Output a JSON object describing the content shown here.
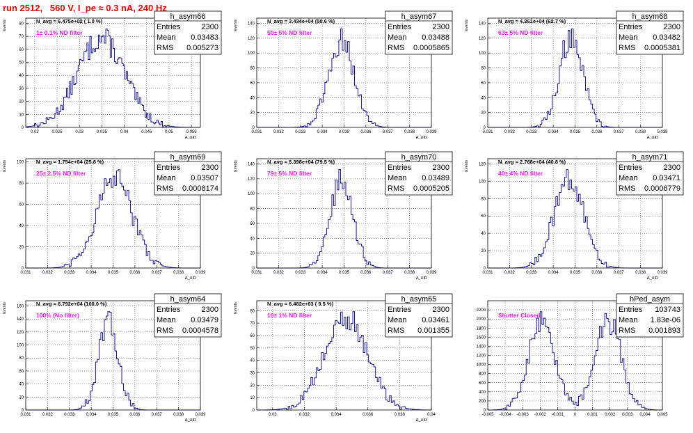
{
  "run_title": "run 2512,   560 V, I_pe ≈ 0.3 nA, 240 Hz",
  "colors": {
    "title": "#e00000",
    "filter_label": "#e81ce8",
    "histogram": "#000080",
    "grid": "#666666"
  },
  "chart_data": [
    {
      "type": "histogram",
      "name": "h_asym66",
      "navg": "N_avg = 6.475e+02 ( 1.0 %)",
      "filter": "1± 0.1% ND filter",
      "stats": [
        [
          "Entries",
          "2300"
        ],
        [
          "Mean",
          "0.03483"
        ],
        [
          "RMS",
          "0.005273"
        ]
      ],
      "xlabel": "A_UID",
      "ylabel": "Events",
      "xlim": [
        0.018,
        0.057
      ],
      "ylim": [
        0,
        84
      ],
      "xticks": [
        0.02,
        0.025,
        0.03,
        0.035,
        0.04,
        0.045,
        0.05,
        0.055
      ],
      "xticklabels": [
        "0.02",
        "0.025",
        "0.03",
        "0.035",
        "0.04",
        "0.045",
        "0.05",
        "0.055"
      ],
      "yticks": [
        0,
        10,
        20,
        30,
        40,
        50,
        60,
        70,
        80
      ],
      "mean": 0.03483,
      "rms": 0.005273,
      "nbins": 120,
      "entries": 2300
    },
    {
      "type": "histogram",
      "name": "h_asym67",
      "navg": "N_avg = 3.434e+04 (50.6 %)",
      "filter": "50± 5% ND filter",
      "stats": [
        [
          "Entries",
          "2300"
        ],
        [
          "Mean",
          "0.03488"
        ],
        [
          "RMS",
          "0.0005865"
        ]
      ],
      "xlabel": "A_UID",
      "ylabel": "Events",
      "xlim": [
        0.031,
        0.039
      ],
      "ylim": [
        0,
        147
      ],
      "xticks": [
        0.031,
        0.032,
        0.033,
        0.034,
        0.035,
        0.036,
        0.037,
        0.038,
        0.039
      ],
      "xticklabels": [
        "0.031",
        "0.032",
        "0.033",
        "0.034",
        "0.035",
        "0.036",
        "0.037",
        "0.038",
        "0.039"
      ],
      "yticks": [
        0,
        20,
        40,
        60,
        80,
        100,
        120,
        140
      ],
      "mean": 0.03488,
      "rms": 0.0005865,
      "nbins": 100,
      "entries": 2300
    },
    {
      "type": "histogram",
      "name": "h_asym68",
      "navg": "N_avg = 4.261e+04 (62.7 %)",
      "filter": "63± 5% ND filter",
      "stats": [
        [
          "Entries",
          "2300"
        ],
        [
          "Mean",
          "0.03482"
        ],
        [
          "RMS",
          "0.0005381"
        ]
      ],
      "xlabel": "A_UID",
      "ylabel": "Events",
      "xlim": [
        0.031,
        0.039
      ],
      "ylim": [
        0,
        147
      ],
      "xticks": [
        0.031,
        0.032,
        0.033,
        0.034,
        0.035,
        0.036,
        0.037,
        0.038,
        0.039
      ],
      "xticklabels": [
        "0.031",
        "0.032",
        "0.033",
        "0.034",
        "0.035",
        "0.036",
        "0.037",
        "0.038",
        "0.039"
      ],
      "yticks": [
        0,
        20,
        40,
        60,
        80,
        100,
        120,
        140
      ],
      "mean": 0.03482,
      "rms": 0.0005381,
      "nbins": 100,
      "entries": 2300
    },
    {
      "type": "histogram",
      "name": "h_asym69",
      "navg": "N_avg = 1.754e+04 (25.8 %)",
      "filter": "25± 2.5% ND filter",
      "stats": [
        [
          "Entries",
          "2300"
        ],
        [
          "Mean",
          "0.03507"
        ],
        [
          "RMS",
          "0.0008174"
        ]
      ],
      "xlabel": "A_UID",
      "ylabel": "Events",
      "xlim": [
        0.031,
        0.039
      ],
      "ylim": [
        0,
        103
      ],
      "xticks": [
        0.031,
        0.032,
        0.033,
        0.034,
        0.035,
        0.036,
        0.037,
        0.038,
        0.039
      ],
      "xticklabels": [
        "0.031",
        "0.032",
        "0.033",
        "0.034",
        "0.035",
        "0.036",
        "0.037",
        "0.038",
        "0.039"
      ],
      "yticks": [
        0,
        20,
        40,
        60,
        80,
        100
      ],
      "mean": 0.03507,
      "rms": 0.0008174,
      "nbins": 100,
      "entries": 2300
    },
    {
      "type": "histogram",
      "name": "h_asym70",
      "navg": "N_avg = 5.398e+04 (79.5 %)",
      "filter": "79± 5% ND filter",
      "stats": [
        [
          "Entries",
          "2300"
        ],
        [
          "Mean",
          "0.03489"
        ],
        [
          "RMS",
          "0.0005205"
        ]
      ],
      "xlabel": "A_UID",
      "ylabel": "Events",
      "xlim": [
        0.031,
        0.039
      ],
      "ylim": [
        0,
        147
      ],
      "xticks": [
        0.031,
        0.032,
        0.033,
        0.034,
        0.035,
        0.036,
        0.037,
        0.038,
        0.039
      ],
      "xticklabels": [
        "0.031",
        "0.032",
        "0.033",
        "0.034",
        "0.035",
        "0.036",
        "0.037",
        "0.038",
        "0.039"
      ],
      "yticks": [
        0,
        20,
        40,
        60,
        80,
        100,
        120,
        140
      ],
      "mean": 0.03489,
      "rms": 0.0005205,
      "nbins": 100,
      "entries": 2300
    },
    {
      "type": "histogram",
      "name": "h_asym71",
      "navg": "N_avg = 2.768e+04 (40.8 %)",
      "filter": "40± 4% ND filter",
      "stats": [
        [
          "Entries",
          "2300"
        ],
        [
          "Mean",
          "0.03471"
        ],
        [
          "RMS",
          "0.0006779"
        ]
      ],
      "xlabel": "A_UID",
      "ylabel": "Events",
      "xlim": [
        0.031,
        0.039
      ],
      "ylim": [
        0,
        126
      ],
      "xticks": [
        0.031,
        0.032,
        0.033,
        0.034,
        0.035,
        0.036,
        0.037,
        0.038,
        0.039
      ],
      "xticklabels": [
        "0.031",
        "0.032",
        "0.033",
        "0.034",
        "0.035",
        "0.036",
        "0.037",
        "0.038",
        "0.039"
      ],
      "yticks": [
        0,
        20,
        40,
        60,
        80,
        100,
        120
      ],
      "mean": 0.03471,
      "rms": 0.0006779,
      "nbins": 100,
      "entries": 2300
    },
    {
      "type": "histogram",
      "name": "h_asym64",
      "navg": "N_avg = 6.792e+04 (100.0 %)",
      "filter": "100% (No filter)",
      "stats": [
        [
          "Entries",
          "2300"
        ],
        [
          "Mean",
          "0.03479"
        ],
        [
          "RMS",
          "0.0004578"
        ]
      ],
      "xlabel": "A_UID",
      "ylabel": "Events",
      "xlim": [
        0.031,
        0.039
      ],
      "ylim": [
        0,
        168
      ],
      "xticks": [
        0.031,
        0.032,
        0.033,
        0.034,
        0.035,
        0.036,
        0.037,
        0.038,
        0.039
      ],
      "xticklabels": [
        "0.031",
        "0.032",
        "0.033",
        "0.034",
        "0.035",
        "0.036",
        "0.037",
        "0.038",
        "0.039"
      ],
      "yticks": [
        0,
        20,
        40,
        60,
        80,
        100,
        120,
        140,
        160
      ],
      "mean": 0.03479,
      "rms": 0.0004578,
      "nbins": 100,
      "entries": 2300
    },
    {
      "type": "histogram",
      "name": "h_asym65",
      "navg": "N_avg = 6.482e+03 ( 9.5 %)",
      "filter": "10± 1% ND filter",
      "stats": [
        [
          "Entries",
          "2300"
        ],
        [
          "Mean",
          "0.03461"
        ],
        [
          "RMS",
          "0.001355"
        ]
      ],
      "xlabel": "A_UID",
      "ylabel": "Events",
      "xlim": [
        0.029,
        0.04
      ],
      "ylim": [
        0,
        88
      ],
      "xticks": [
        0.03,
        0.032,
        0.034,
        0.036,
        0.038,
        0.04
      ],
      "xticklabels": [
        "0.03",
        "0.032",
        "0.034",
        "0.036",
        "0.038",
        "0.04"
      ],
      "yticks": [
        0,
        10,
        20,
        30,
        40,
        50,
        60,
        70,
        80
      ],
      "mean": 0.03461,
      "rms": 0.001355,
      "nbins": 100,
      "entries": 2300
    },
    {
      "type": "histogram",
      "name": "hPed_asym",
      "navg": "",
      "filter": "Shutter Closed",
      "stats": [
        [
          "Entries",
          "103743"
        ],
        [
          "Mean",
          "1.83e-06"
        ],
        [
          "RMS",
          "0.001893"
        ]
      ],
      "xlabel": "",
      "ylabel": "",
      "xlim": [
        -0.005,
        0.005
      ],
      "ylim": [
        0,
        2400
      ],
      "xticks": [
        -0.005,
        -0.004,
        -0.003,
        -0.002,
        -0.001,
        0,
        0.001,
        0.002,
        0.003,
        0.004,
        0.005
      ],
      "xticklabels": [
        "-0.005",
        "-0.004",
        "-0.003",
        "-0.002",
        "-0.001",
        "0",
        "0.001",
        "0.002",
        "0.003",
        "0.004",
        "0.005"
      ],
      "yticks": [
        0,
        200,
        400,
        600,
        800,
        1000,
        1200,
        1400,
        1600,
        1800,
        2000,
        2200
      ],
      "bimodal": true,
      "mean": 0.0,
      "rms": 0.001893,
      "nbins": 100,
      "entries": 103743
    }
  ]
}
